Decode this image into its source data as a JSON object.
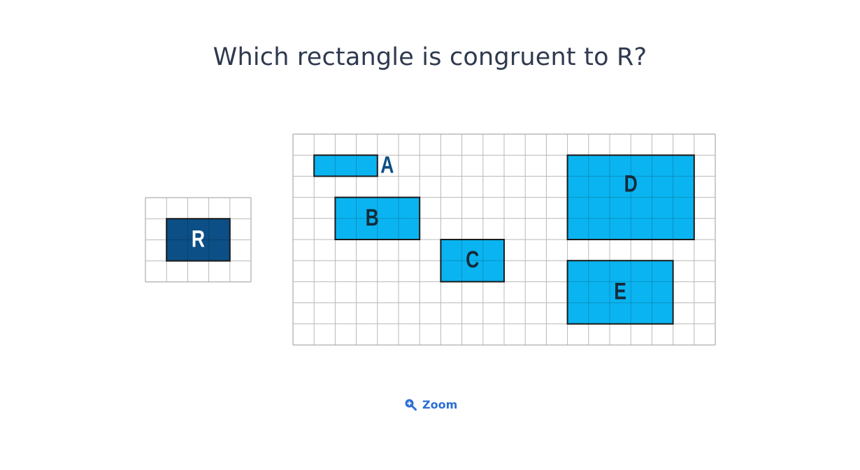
{
  "question": "Which rectangle is congruent to R?",
  "colors": {
    "grid_line": "#b8b8b8",
    "grid_border": "#9a9a9a",
    "reference_fill": "#0b4f86",
    "reference_label": "#ffffff",
    "option_fill": "#0ab4f0",
    "option_label": "#152b3a",
    "outside_label": "#0b4f86",
    "accent": "#2b6fd6"
  },
  "reference": {
    "label": "R",
    "width_units": 3,
    "height_units": 2
  },
  "options": [
    {
      "label": "A",
      "width_units": 3,
      "height_units": 1
    },
    {
      "label": "B",
      "width_units": 4,
      "height_units": 2
    },
    {
      "label": "C",
      "width_units": 3,
      "height_units": 2
    },
    {
      "label": "D",
      "width_units": 6,
      "height_units": 4
    },
    {
      "label": "E",
      "width_units": 5,
      "height_units": 3
    }
  ],
  "zoom": {
    "label": "Zoom",
    "icon": "zoom-in-icon"
  }
}
